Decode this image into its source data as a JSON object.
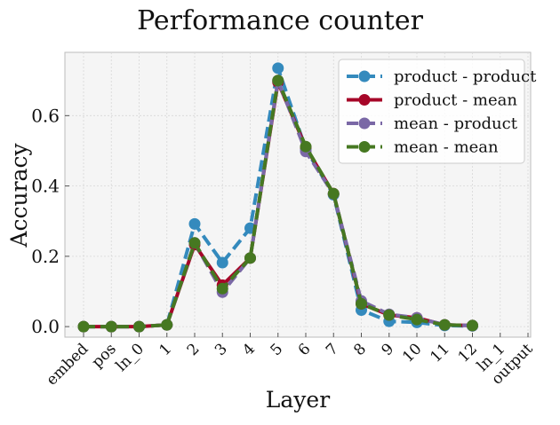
{
  "chart_data": {
    "type": "line",
    "title": "Performance counter",
    "xlabel": "Layer",
    "ylabel": "Accuracy",
    "categories": [
      "embed",
      "pos",
      "ln_0",
      "1",
      "2",
      "3",
      "4",
      "5",
      "6",
      "7",
      "8",
      "9",
      "10",
      "11",
      "12",
      "ln_1",
      "output"
    ],
    "ylim": [
      -0.03,
      0.78
    ],
    "yticks": [
      0.0,
      0.2,
      0.4,
      0.6
    ],
    "ytick_labels": [
      "0.0",
      "0.2",
      "0.4",
      "0.6"
    ],
    "grid": true,
    "legend_position": "top-right",
    "series": [
      {
        "name": "product - product",
        "color": "#348ABD",
        "dash": "dashed",
        "values": [
          0.0,
          0.0,
          0.0,
          0.005,
          0.292,
          0.182,
          0.28,
          0.735,
          0.505,
          0.375,
          0.047,
          0.015,
          0.012,
          0.003,
          0.002,
          null,
          null
        ]
      },
      {
        "name": "product - mean",
        "color": "#A60628",
        "dash": "solid",
        "values": [
          0.0,
          0.0,
          0.0,
          0.005,
          0.233,
          0.118,
          0.195,
          0.695,
          0.51,
          0.378,
          0.065,
          0.033,
          0.025,
          0.005,
          0.003,
          null,
          null
        ]
      },
      {
        "name": "mean - product",
        "color": "#7A68A6",
        "dash": "dashed",
        "values": [
          0.0,
          0.0,
          0.0,
          0.005,
          0.238,
          0.098,
          0.195,
          0.7,
          0.498,
          0.377,
          0.073,
          0.035,
          0.025,
          0.005,
          0.003,
          null,
          null
        ]
      },
      {
        "name": "mean - mean",
        "color": "#467821",
        "dash": "dashed",
        "values": [
          0.0,
          0.0,
          0.0,
          0.005,
          0.238,
          0.108,
          0.195,
          0.7,
          0.512,
          0.378,
          0.065,
          0.033,
          0.02,
          0.005,
          0.003,
          null,
          null
        ]
      }
    ]
  }
}
